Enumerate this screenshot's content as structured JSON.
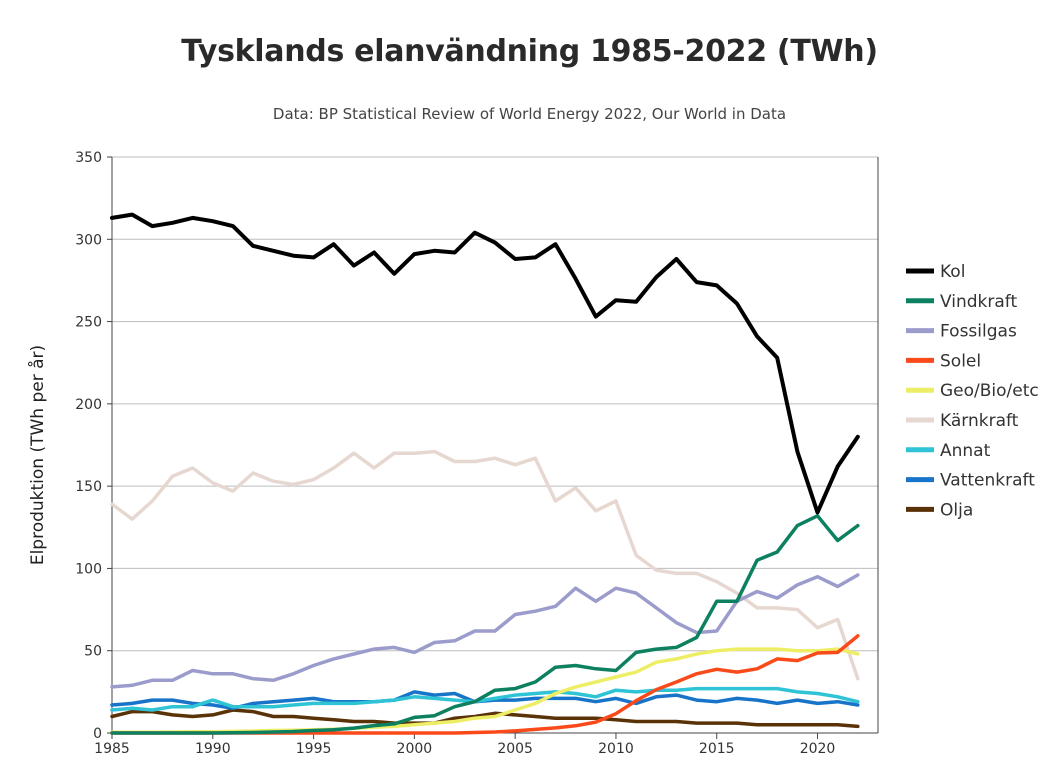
{
  "header": {
    "title": "Tysklands elanvändning 1985-2022 (TWh)",
    "subtitle": "Data: BP Statistical Review of World Energy 2022, Our World in Data"
  },
  "chart_data": {
    "type": "line",
    "title": "Tysklands elanvändning 1985-2022 (TWh)",
    "subtitle": "Data: BP Statistical Review of World Energy 2022, Our World in Data",
    "xlabel": "",
    "ylabel": "Elproduktion (TWh per år)",
    "xlim": [
      1985,
      2023
    ],
    "ylim": [
      0,
      350
    ],
    "xticks": [
      1985,
      1990,
      1995,
      2000,
      2005,
      2010,
      2015,
      2020
    ],
    "yticks": [
      0,
      50,
      100,
      150,
      200,
      250,
      300,
      350
    ],
    "grid": true,
    "legend_position": "right",
    "x": [
      1985,
      1986,
      1987,
      1988,
      1989,
      1990,
      1991,
      1992,
      1993,
      1994,
      1995,
      1996,
      1997,
      1998,
      1999,
      2000,
      2001,
      2002,
      2003,
      2004,
      2005,
      2006,
      2007,
      2008,
      2009,
      2010,
      2011,
      2012,
      2013,
      2014,
      2015,
      2016,
      2017,
      2018,
      2019,
      2020,
      2021,
      2022
    ],
    "series": [
      {
        "name": "Kol",
        "color": "#000000",
        "width": 4,
        "values": [
          313,
          315,
          308,
          310,
          313,
          311,
          308,
          296,
          293,
          290,
          289,
          297,
          284,
          292,
          279,
          291,
          293,
          292,
          304,
          298,
          288,
          289,
          297,
          276,
          253,
          263,
          262,
          277,
          288,
          274,
          272,
          261,
          241,
          228,
          171,
          134,
          162,
          180
        ]
      },
      {
        "name": "Vindkraft",
        "color": "#0d8060",
        "width": 3.5,
        "values": [
          0,
          0,
          0,
          0,
          0,
          0,
          0.2,
          0.3,
          0.6,
          0.9,
          1.5,
          2.0,
          3.0,
          4.5,
          5.5,
          9.5,
          10.5,
          16,
          19,
          26,
          27,
          31,
          40,
          41,
          39,
          38,
          49,
          51,
          52,
          58,
          80,
          80,
          105,
          110,
          126,
          132,
          117,
          126
        ]
      },
      {
        "name": "Fossilgas",
        "color": "#9b9ccc",
        "width": 3.5,
        "values": [
          28,
          29,
          32,
          32,
          38,
          36,
          36,
          33,
          32,
          36,
          41,
          45,
          48,
          51,
          52,
          49,
          55,
          56,
          62,
          62,
          72,
          74,
          77,
          88,
          80,
          88,
          85,
          76,
          67,
          61,
          62,
          80,
          86,
          82,
          90,
          95,
          89,
          96
        ]
      },
      {
        "name": "Solel",
        "color": "#fa4a1a",
        "width": 3.5,
        "values": [
          0,
          0,
          0,
          0,
          0,
          0,
          0,
          0,
          0,
          0,
          0,
          0,
          0,
          0,
          0,
          0,
          0,
          0,
          0.3,
          0.6,
          1.3,
          2.2,
          3.1,
          4.4,
          6.6,
          11.7,
          19.6,
          26.4,
          31,
          36,
          38.7,
          37,
          39,
          45,
          44,
          48.6,
          49,
          59
        ]
      },
      {
        "name": "Geo/Bio/etc",
        "color": "#eeee66",
        "width": 3.5,
        "values": [
          0.5,
          0.5,
          0.5,
          0.6,
          0.7,
          0.8,
          1,
          1.2,
          1.5,
          1.7,
          2,
          2.3,
          2.8,
          3.5,
          4,
          5,
          6,
          7,
          9,
          10,
          14,
          18,
          24,
          28,
          31,
          34,
          37,
          43,
          45,
          48,
          50,
          51,
          51,
          51,
          50,
          50,
          51,
          48
        ]
      },
      {
        "name": "Kärnkraft",
        "color": "#e6d8d0",
        "width": 3.5,
        "values": [
          139,
          130,
          141,
          156,
          161,
          152,
          147,
          158,
          153,
          151,
          154,
          161,
          170,
          161,
          170,
          170,
          171,
          165,
          165,
          167,
          163,
          167,
          141,
          149,
          135,
          141,
          108,
          99,
          97,
          97,
          92,
          85,
          76,
          76,
          75,
          64,
          69,
          33
        ]
      },
      {
        "name": "Annat",
        "color": "#2ec4d6",
        "width": 3.5,
        "values": [
          14,
          15,
          14,
          16,
          16,
          20,
          16,
          16,
          16,
          17,
          18,
          18,
          18,
          19,
          20,
          22,
          21,
          20,
          19,
          21,
          23,
          24,
          25,
          24,
          22,
          26,
          25,
          26,
          26,
          27,
          27,
          27,
          27,
          27,
          25,
          24,
          22,
          19
        ]
      },
      {
        "name": "Vattenkraft",
        "color": "#1874c8",
        "width": 3.5,
        "values": [
          17,
          18,
          20,
          20,
          18,
          17,
          15,
          18,
          19,
          20,
          21,
          19,
          19,
          19,
          20,
          25,
          23,
          24,
          19,
          20,
          20,
          21,
          21,
          21,
          19,
          21,
          18,
          22,
          23,
          20,
          19,
          21,
          20,
          18,
          20,
          18,
          19,
          17
        ]
      },
      {
        "name": "Olja",
        "color": "#5a3208",
        "width": 3.5,
        "values": [
          10,
          13,
          13,
          11,
          10,
          11,
          14,
          13,
          10,
          10,
          9,
          8,
          7,
          7,
          6,
          6,
          6,
          9,
          10,
          12,
          11,
          10,
          9,
          9,
          9,
          8,
          7,
          7,
          7,
          6,
          6,
          6,
          5,
          5,
          5,
          5,
          5,
          4
        ]
      }
    ]
  }
}
